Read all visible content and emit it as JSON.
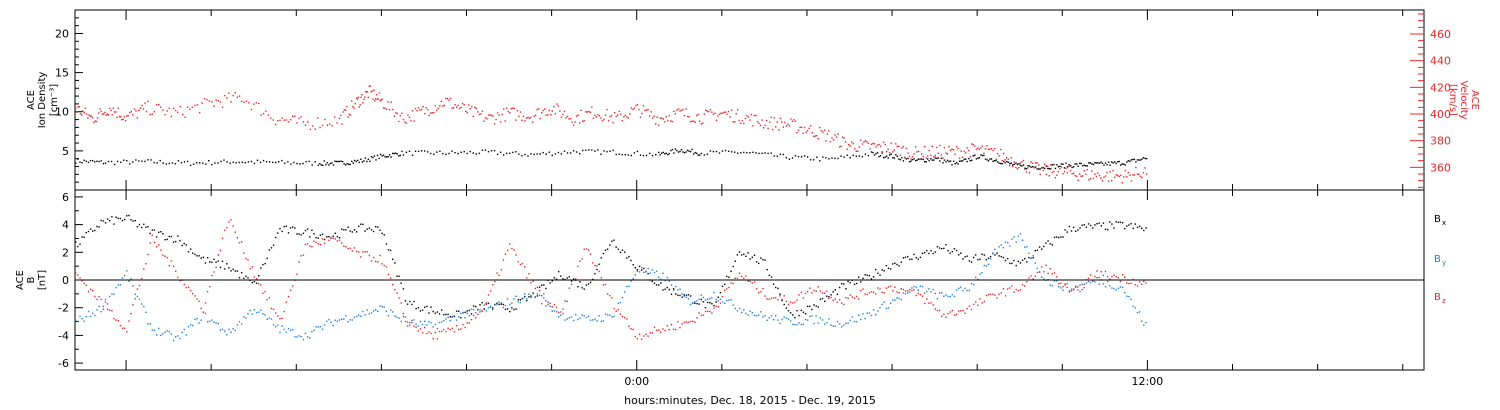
{
  "colors": {
    "black": "#000000",
    "red": "#e8262a",
    "blue": "#1f7fd6"
  },
  "chart_data": [
    {
      "type": "scatter",
      "panel": "top",
      "ylabel_left": [
        "ACE",
        "Ion Density",
        "[cm⁻³]"
      ],
      "ylabel_right": [
        "ACE",
        "Velocity",
        "[km/s]"
      ],
      "ylim_left": [
        0,
        23
      ],
      "yticks_left": [
        5,
        10,
        15,
        20
      ],
      "ylim_right": [
        343,
        478
      ],
      "yticks_right": [
        360,
        380,
        400,
        420,
        440,
        460
      ],
      "series": [
        {
          "name": "",
          "axis": "left",
          "color": "black",
          "x": [
            -13.2,
            -12.5,
            -11.5,
            -10.5,
            -9.5,
            -8.5,
            -7.5,
            -7.0,
            -6.5,
            -6.0,
            -5.5,
            -4.5,
            -3.5,
            -2.5,
            -1.5,
            -0.5,
            0.5,
            1.0,
            1.5,
            2.5,
            3.5,
            4.5,
            5.5,
            6.0,
            6.5,
            7.0,
            7.5,
            8.0,
            8.5,
            9.0,
            9.5,
            10.0,
            10.5,
            11.0,
            11.5,
            12.0
          ],
          "y": [
            3.8,
            3.6,
            3.7,
            3.5,
            3.7,
            3.6,
            3.5,
            3.5,
            3.8,
            4.4,
            4.8,
            4.8,
            4.9,
            4.6,
            5.0,
            4.9,
            4.6,
            5.2,
            4.8,
            4.9,
            4.3,
            4.0,
            4.7,
            4.4,
            3.8,
            4.1,
            3.4,
            4.4,
            3.8,
            3.1,
            3.0,
            3.2,
            3.3,
            3.4,
            3.6,
            4.2
          ]
        },
        {
          "name": "",
          "axis": "right",
          "color": "red",
          "x": [
            -13.2,
            -12.8,
            -12.4,
            -12.0,
            -11.5,
            -10.8,
            -10.0,
            -9.3,
            -8.5,
            -7.8,
            -7.0,
            -6.6,
            -6.3,
            -6.0,
            -5.5,
            -5.0,
            -4.5,
            -4.0,
            -3.5,
            -3.0,
            -2.5,
            -2.0,
            -1.5,
            -1.0,
            -0.5,
            0.0,
            0.5,
            1.0,
            1.5,
            2.0,
            2.5,
            3.0,
            3.5,
            4.0,
            4.5,
            5.0,
            5.5,
            6.0,
            6.5,
            7.0,
            7.5,
            8.0,
            8.5,
            9.0,
            9.5,
            10.0,
            10.5,
            11.0,
            11.5,
            12.0
          ],
          "y": [
            405,
            397,
            405,
            398,
            405,
            401,
            409,
            413,
            397,
            393,
            396,
            409,
            417,
            410,
            397,
            403,
            410,
            403,
            397,
            401,
            399,
            405,
            397,
            402,
            397,
            404,
            397,
            401,
            398,
            401,
            398,
            394,
            393,
            389,
            384,
            377,
            376,
            375,
            371,
            372,
            372,
            374,
            370,
            363,
            358,
            357,
            355,
            354,
            354,
            358
          ]
        }
      ]
    },
    {
      "type": "scatter",
      "panel": "bottom",
      "ylabel": [
        "ACE",
        "B",
        "[nT]"
      ],
      "ylim": [
        -6.5,
        6.5
      ],
      "yticks": [
        -6,
        -4,
        -2,
        0,
        2,
        4,
        6
      ],
      "xlabel": "hours:minutes, Dec. 18, 2015 - Dec. 19, 2015",
      "xlim": [
        -13.2,
        18.5
      ],
      "xticks": [
        {
          "x": 0,
          "label": "0:00"
        },
        {
          "x": 12,
          "label": "12:00"
        }
      ],
      "legend": [
        {
          "label": "B",
          "sub": "x",
          "color": "black"
        },
        {
          "label": "B",
          "sub": "y",
          "color": "blue"
        },
        {
          "label": "B",
          "sub": "z",
          "color": "red"
        }
      ],
      "series": [
        {
          "name": "Bx",
          "color": "black",
          "x": [
            -13.2,
            -12.6,
            -12.0,
            -11.4,
            -10.8,
            -10.2,
            -9.6,
            -9.0,
            -8.4,
            -7.8,
            -7.2,
            -6.6,
            -6.0,
            -5.4,
            -4.8,
            -4.2,
            -3.6,
            -3.0,
            -2.4,
            -1.8,
            -1.2,
            -0.6,
            0.0,
            0.6,
            1.2,
            1.8,
            2.4,
            3.0,
            3.6,
            4.2,
            4.8,
            5.4,
            6.0,
            6.6,
            7.2,
            7.8,
            8.4,
            9.0,
            9.6,
            10.2,
            10.8,
            11.4,
            12.0
          ],
          "y": [
            2.5,
            4.2,
            4.5,
            3.5,
            3.0,
            1.5,
            1.0,
            -0.3,
            3.7,
            3.5,
            3.2,
            3.8,
            3.7,
            -1.6,
            -2.2,
            -2.5,
            -1.8,
            -2.0,
            -1.0,
            0.5,
            -0.5,
            3.0,
            1.0,
            -0.5,
            -1.2,
            -2.0,
            2.2,
            1.2,
            -2.5,
            -1.8,
            -0.5,
            0.2,
            1.2,
            1.8,
            2.4,
            1.5,
            1.8,
            1.2,
            2.5,
            3.8,
            3.9,
            4.0,
            3.7
          ]
        },
        {
          "name": "By",
          "color": "blue",
          "x": [
            -13.2,
            -12.6,
            -12.0,
            -11.4,
            -10.8,
            -10.2,
            -9.6,
            -9.0,
            -8.4,
            -7.8,
            -7.2,
            -6.6,
            -6.0,
            -5.4,
            -4.8,
            -4.2,
            -3.6,
            -3.0,
            -2.4,
            -1.8,
            -1.2,
            -0.6,
            0.0,
            0.6,
            1.2,
            1.8,
            2.4,
            3.0,
            3.6,
            4.2,
            4.8,
            5.4,
            6.0,
            6.6,
            7.2,
            7.8,
            8.4,
            9.0,
            9.6,
            10.2,
            10.8,
            11.4,
            12.0
          ],
          "y": [
            -3.0,
            -2.0,
            0.5,
            -3.5,
            -4.2,
            -2.5,
            -3.8,
            -2.0,
            -3.5,
            -4.0,
            -3.0,
            -2.5,
            -2.0,
            -3.0,
            -3.3,
            -2.5,
            -2.2,
            -1.5,
            -1.0,
            -2.5,
            -2.8,
            -2.6,
            0.8,
            0.3,
            -1.5,
            -1.0,
            -2.0,
            -2.6,
            -3.0,
            -2.8,
            -3.1,
            -2.5,
            -1.5,
            -0.5,
            -1.2,
            -0.5,
            2.0,
            3.2,
            0.0,
            -0.6,
            0.0,
            -0.5,
            -3.5
          ]
        },
        {
          "name": "Bz",
          "color": "red",
          "x": [
            -13.2,
            -12.6,
            -12.0,
            -11.4,
            -10.8,
            -10.2,
            -9.6,
            -9.0,
            -8.4,
            -7.8,
            -7.2,
            -6.6,
            -6.0,
            -5.4,
            -4.8,
            -4.2,
            -3.6,
            -3.0,
            -2.4,
            -1.8,
            -1.2,
            -0.6,
            0.0,
            0.6,
            1.2,
            1.8,
            2.4,
            3.0,
            3.6,
            4.2,
            4.8,
            5.4,
            6.0,
            6.6,
            7.2,
            7.8,
            8.4,
            9.0,
            9.6,
            10.2,
            10.8,
            11.4,
            12.0
          ],
          "y": [
            0.5,
            -1.5,
            -3.5,
            3.0,
            0.5,
            -2.0,
            4.5,
            0.5,
            -3.0,
            2.5,
            3.0,
            2.0,
            1.5,
            -3.0,
            -4.0,
            -3.5,
            -2.0,
            2.5,
            -0.5,
            -2.5,
            2.5,
            -1.5,
            -4.0,
            -3.5,
            -3.0,
            -2.0,
            0.5,
            -1.0,
            -1.5,
            -0.5,
            -1.5,
            -0.8,
            -0.5,
            -1.0,
            -2.5,
            -2.0,
            -1.0,
            -0.5,
            1.0,
            -1.0,
            0.5,
            0.2,
            -0.3
          ]
        }
      ]
    }
  ]
}
